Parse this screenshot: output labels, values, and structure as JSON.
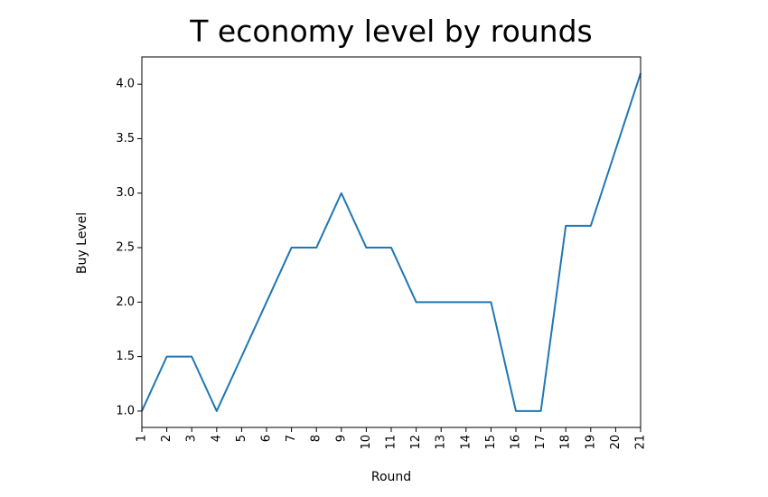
{
  "chart_data": {
    "type": "line",
    "title": "T economy level by rounds",
    "xlabel": "Round",
    "ylabel": "Buy Level",
    "x": [
      1,
      2,
      3,
      4,
      5,
      6,
      7,
      8,
      9,
      10,
      11,
      12,
      13,
      14,
      15,
      16,
      17,
      18,
      19,
      20,
      21
    ],
    "x_tick_labels": [
      "1",
      "2",
      "3",
      "4",
      "5",
      "6",
      "7",
      "8",
      "9",
      "10",
      "11",
      "12",
      "13",
      "14",
      "15",
      "16",
      "17",
      "18",
      "19",
      "20",
      "21"
    ],
    "y_ticks": [
      1.0,
      1.5,
      2.0,
      2.5,
      3.0,
      3.5,
      4.0
    ],
    "y_tick_labels": [
      "1.0",
      "1.5",
      "2.0",
      "2.5",
      "3.0",
      "3.5",
      "4.0"
    ],
    "xlim": [
      1,
      21
    ],
    "ylim": [
      0.85,
      4.25
    ],
    "grid": false,
    "series": [
      {
        "values": [
          1.0,
          1.5,
          1.5,
          1.0,
          1.5,
          2.0,
          2.5,
          2.5,
          3.0,
          2.5,
          2.5,
          2.0,
          2.0,
          2.0,
          2.0,
          1.0,
          1.0,
          2.7,
          2.7,
          3.4,
          4.1
        ],
        "color": "#1f77b4"
      }
    ]
  }
}
